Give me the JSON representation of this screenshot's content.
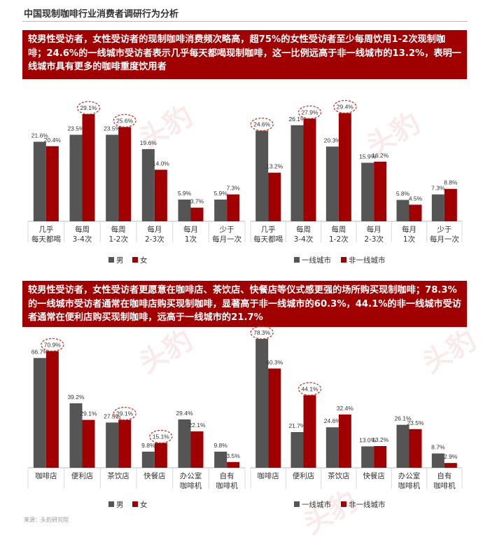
{
  "page_title": "中国现制咖啡行业消费者调研行为分析",
  "banner1": "较男性受访者，女性受访者的现制咖啡消费频次略高，超75%的女性受访者至少每周饮用1-2次现制咖啡；24.6%的一线城市受访者表示几乎每天都喝现制咖啡，这一比例远高于非一线城市的13.2%，表明一线城市具有更多的咖啡重度饮用者",
  "banner2": "较男性受访者，女性受访者更愿意在咖啡店、茶饮店、快餐店等仪式感更强的场所购买现制咖啡；78.3%的一线城市受访者通常在咖啡店购买现制咖啡，显著高于非一线城市的60.3%，44.1%的非一线城市受访者通常在便利店购买现制咖啡，远高于一线城市的21.7%",
  "source": "来源：头豹研究院",
  "watermark": "头豹",
  "colors": {
    "series1": "#555555",
    "series2": "#a00000",
    "circle": "#c0392b"
  },
  "chart_data": [
    {
      "type": "bar",
      "categories": [
        [
          "几乎",
          "每天都喝"
        ],
        [
          "每周",
          "3-4次"
        ],
        [
          "每周",
          "1-2次"
        ],
        [
          "每月",
          "2-3次"
        ],
        [
          "每月",
          "1次"
        ],
        [
          "少于",
          "每月一次"
        ]
      ],
      "series": [
        {
          "name": "男",
          "values": [
            21.6,
            23.5,
            23.5,
            19.6,
            5.9,
            5.9
          ]
        },
        {
          "name": "女",
          "values": [
            20.4,
            29.1,
            25.6,
            14.0,
            3.7,
            7.3
          ]
        }
      ],
      "labels": [
        [
          "21.6%",
          "23.5%",
          "23.5%",
          "19.6%",
          "5.9%",
          "5.9%"
        ],
        [
          "20.4%",
          "29.1%",
          "25.6%",
          "14.0%",
          "3.7%",
          "7.3%"
        ]
      ],
      "highlighted": [
        [
          1,
          1
        ],
        [
          1,
          2
        ]
      ],
      "ylim": [
        0,
        35
      ]
    },
    {
      "type": "bar",
      "categories": [
        [
          "几乎",
          "每天都喝"
        ],
        [
          "每周",
          "3-4次"
        ],
        [
          "每周",
          "1-2次"
        ],
        [
          "每月",
          "2-3次"
        ],
        [
          "每月",
          "1次"
        ],
        [
          "少于",
          "每月一次"
        ]
      ],
      "series": [
        {
          "name": "一线城市",
          "values": [
            24.6,
            26.1,
            20.3,
            15.9,
            5.8,
            7.3
          ]
        },
        {
          "name": "非一线城市",
          "values": [
            13.2,
            27.9,
            29.4,
            16.2,
            4.5,
            8.8
          ]
        }
      ],
      "labels": [
        [
          "24.6%",
          "26.1%",
          "20.3%",
          "15.9%",
          "5.8%",
          "7.3%"
        ],
        [
          "13.2%",
          "27.9%",
          "29.4%",
          "16.2%",
          "4.5%",
          "8.8%"
        ]
      ],
      "highlighted": [
        [
          0,
          0
        ],
        [
          1,
          1
        ],
        [
          1,
          2
        ]
      ],
      "ylim": [
        0,
        35
      ]
    },
    {
      "type": "bar",
      "categories": [
        [
          "咖啡店"
        ],
        [
          "便利店"
        ],
        [
          "茶饮店"
        ],
        [
          "快餐店"
        ],
        [
          "办公室",
          "咖啡机"
        ],
        [
          "自有",
          "咖啡机"
        ]
      ],
      "series": [
        {
          "name": "男",
          "values": [
            66.7,
            39.2,
            27.5,
            9.8,
            29.4,
            9.8
          ]
        },
        {
          "name": "女",
          "values": [
            70.9,
            29.1,
            29.1,
            15.1,
            22.1,
            3.5
          ]
        }
      ],
      "labels": [
        [
          "66.7%",
          "39.2%",
          "27.5%",
          "9.8%",
          "29.4%",
          "9.8%"
        ],
        [
          "70.9%",
          "29.1%",
          "29.1%",
          "15.1%",
          "22.1%",
          "3.5%"
        ]
      ],
      "highlighted": [
        [
          1,
          0
        ],
        [
          1,
          2
        ],
        [
          1,
          3
        ]
      ],
      "ylim": [
        0,
        80
      ]
    },
    {
      "type": "bar",
      "categories": [
        [
          "咖啡店"
        ],
        [
          "便利店"
        ],
        [
          "茶饮店"
        ],
        [
          "快餐店"
        ],
        [
          "办公室",
          "咖啡机"
        ],
        [
          "自有",
          "咖啡机"
        ]
      ],
      "series": [
        {
          "name": "一线城市",
          "values": [
            78.3,
            21.7,
            24.6,
            13.0,
            26.1,
            8.7
          ]
        },
        {
          "name": "非一线城市",
          "values": [
            60.3,
            44.1,
            32.4,
            13.2,
            23.5,
            2.9
          ]
        }
      ],
      "labels": [
        [
          "78.3%",
          "21.7%",
          "24.6%",
          "13.0%",
          "26.1%",
          "8.7%"
        ],
        [
          "60.3%",
          "44.1%",
          "32.4%",
          "13.2%",
          "23.5%",
          "2.9%"
        ]
      ],
      "highlighted": [
        [
          0,
          0
        ],
        [
          1,
          1
        ]
      ],
      "ylim": [
        0,
        80
      ]
    }
  ]
}
